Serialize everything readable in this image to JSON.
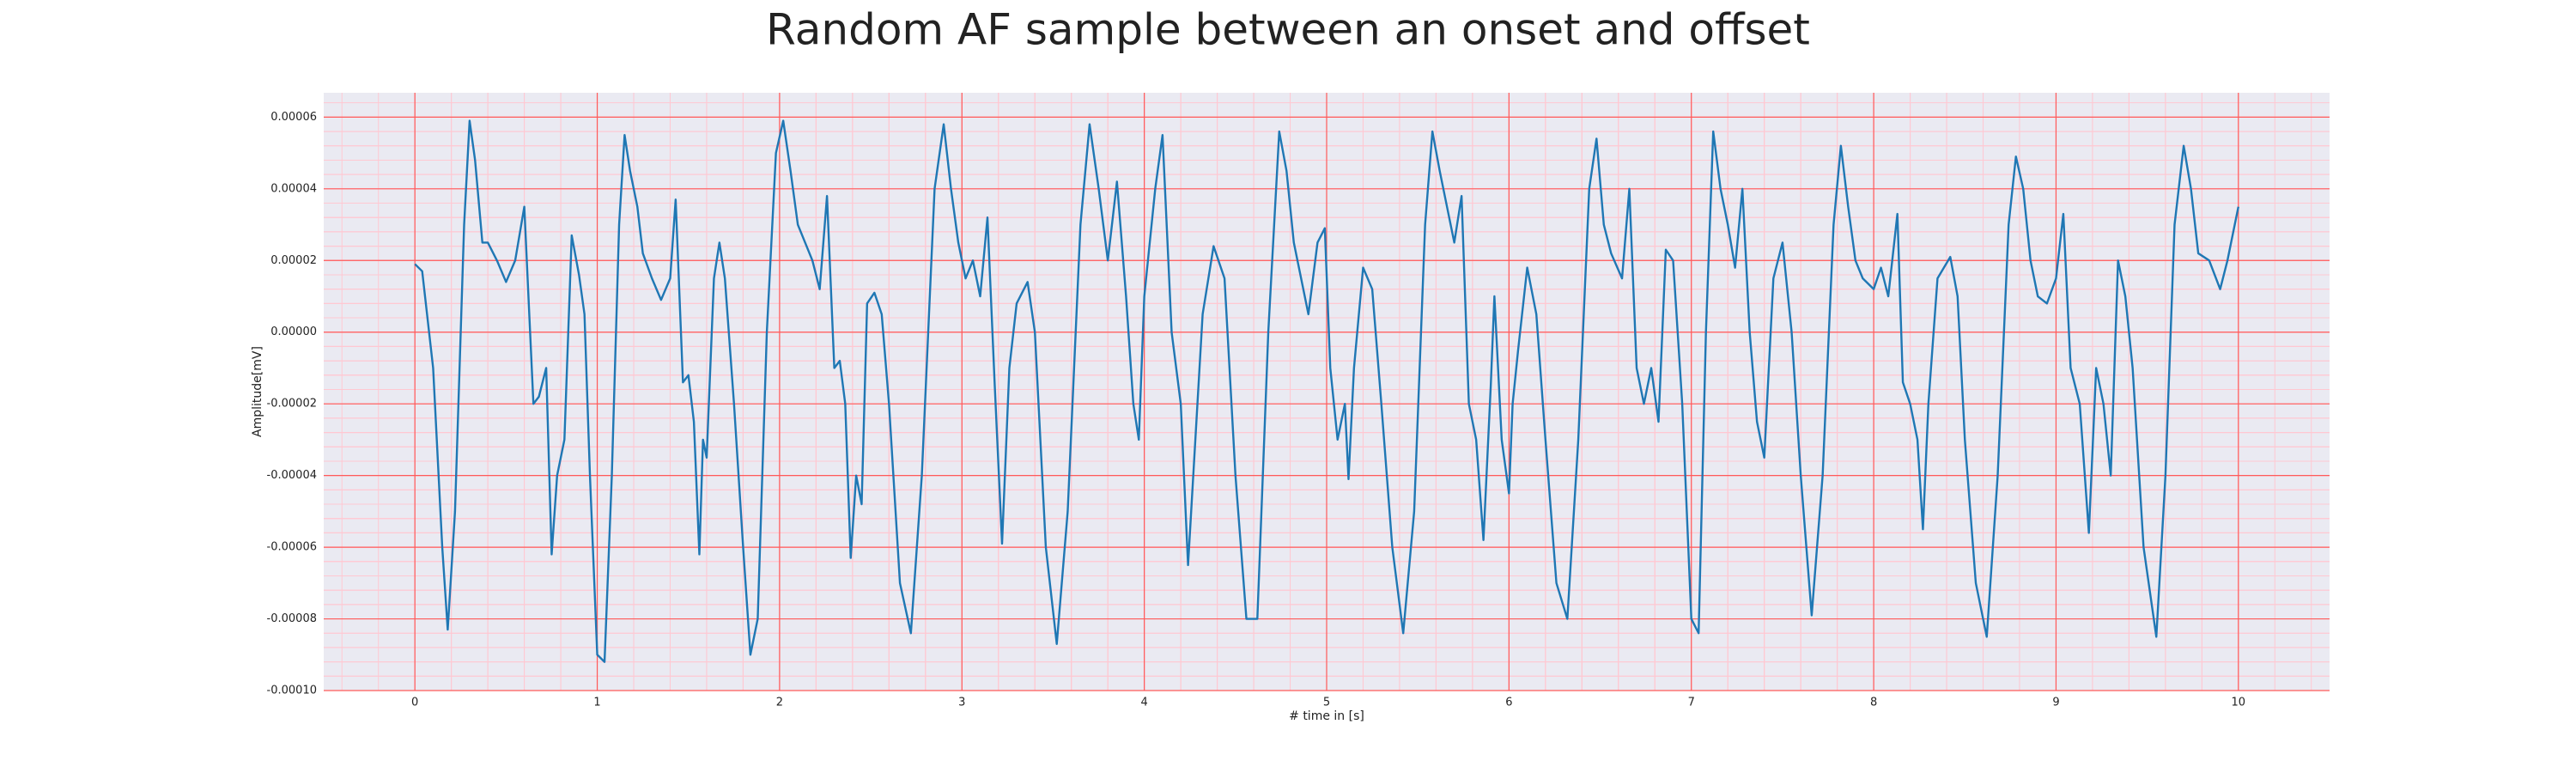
{
  "chart_data": {
    "type": "line",
    "title": "Random AF sample between an onset and offset",
    "xlabel": "# time in [s]",
    "ylabel": "Amplitude[mV]",
    "grid": true,
    "background": "#eaeaf2",
    "grid_color": "#ff5a5a",
    "minor_grid_color": "#ffc8d2",
    "xlim": [
      -0.5,
      10.5
    ],
    "ylim": [
      -0.0001,
      6.68e-05
    ],
    "xticks": [
      0,
      1,
      2,
      3,
      4,
      5,
      6,
      7,
      8,
      9,
      10
    ],
    "yticks": [
      {
        "value": -0.0001,
        "label": "-0.00010"
      },
      -8e-05,
      -6e-05,
      -4e-05,
      -2e-05,
      {
        "value": 0,
        "label": "0.00000"
      },
      2e-05,
      4e-05,
      6e-05
    ],
    "series": [
      {
        "color": "#1f77b4",
        "x": [
          0,
          0.04,
          0.1,
          0.15,
          0.18,
          0.22,
          0.27,
          0.3,
          0.33,
          0.37,
          0.4,
          0.45,
          0.5,
          0.55,
          0.6,
          0.65,
          0.68,
          0.72,
          0.75,
          0.78,
          0.8,
          0.82,
          0.86,
          0.9,
          0.93,
          0.96,
          1.0,
          1.04,
          1.08,
          1.12,
          1.15,
          1.18,
          1.22,
          1.25,
          1.3,
          1.35,
          1.4,
          1.43,
          1.47,
          1.5,
          1.53,
          1.56,
          1.58,
          1.6,
          1.64,
          1.67,
          1.7,
          1.75,
          1.8,
          1.84,
          1.88,
          1.93,
          1.98,
          2.02,
          2.06,
          2.1,
          2.14,
          2.18,
          2.22,
          2.26,
          2.3,
          2.33,
          2.36,
          2.39,
          2.42,
          2.45,
          2.48,
          2.52,
          2.56,
          2.6,
          2.66,
          2.72,
          2.78,
          2.85,
          2.9,
          2.94,
          2.98,
          3.02,
          3.06,
          3.1,
          3.14,
          3.18,
          3.22,
          3.26,
          3.3,
          3.36,
          3.4,
          3.46,
          3.52,
          3.58,
          3.65,
          3.7,
          3.75,
          3.8,
          3.85,
          3.9,
          3.94,
          3.97,
          4.0,
          4.06,
          4.1,
          4.15,
          4.2,
          4.24,
          4.28,
          4.32,
          4.38,
          4.44,
          4.5,
          4.56,
          4.62,
          4.68,
          4.74,
          4.78,
          4.82,
          4.86,
          4.9,
          4.95,
          4.99,
          5.02,
          5.06,
          5.1,
          5.12,
          5.15,
          5.2,
          5.25,
          5.3,
          5.36,
          5.42,
          5.48,
          5.54,
          5.58,
          5.62,
          5.66,
          5.7,
          5.74,
          5.78,
          5.82,
          5.86,
          5.9,
          5.92,
          5.96,
          6.0,
          6.02,
          6.05,
          6.1,
          6.15,
          6.2,
          6.26,
          6.32,
          6.38,
          6.44,
          6.48,
          6.52,
          6.56,
          6.62,
          6.66,
          6.7,
          6.74,
          6.78,
          6.82,
          6.86,
          6.9,
          6.95,
          7.0,
          7.04,
          7.08,
          7.12,
          7.16,
          7.2,
          7.24,
          7.28,
          7.32,
          7.36,
          7.4,
          7.45,
          7.5,
          7.55,
          7.6,
          7.66,
          7.72,
          7.78,
          7.82,
          7.86,
          7.9,
          7.94,
          8.0,
          8.04,
          8.08,
          8.13,
          8.16,
          8.2,
          8.24,
          8.27,
          8.3,
          8.35,
          8.42,
          8.46,
          8.5,
          8.56,
          8.62,
          8.68,
          8.74,
          8.78,
          8.82,
          8.86,
          8.9,
          8.95,
          9.0,
          9.04,
          9.08,
          9.13,
          9.18,
          9.22,
          9.26,
          9.3,
          9.34,
          9.38,
          9.42,
          9.48,
          9.55,
          9.6,
          9.65,
          9.7,
          9.74,
          9.78,
          9.84,
          9.9,
          9.94,
          10.0
        ],
        "values": [
          1.9e-05,
          1.7e-05,
          -1e-05,
          -6e-05,
          -8.3e-05,
          -5e-05,
          3e-05,
          5.9e-05,
          4.8e-05,
          2.5e-05,
          2.5e-05,
          2e-05,
          1.4e-05,
          2e-05,
          3.5e-05,
          -2e-05,
          -1.8e-05,
          -1e-05,
          -6.2e-05,
          -4e-05,
          -3.5e-05,
          -3e-05,
          2.7e-05,
          1.6e-05,
          5e-06,
          -4e-05,
          -9e-05,
          -9.2e-05,
          -4e-05,
          3e-05,
          5.5e-05,
          4.5e-05,
          3.5e-05,
          2.2e-05,
          1.5e-05,
          9e-06,
          1.5e-05,
          3.7e-05,
          -1.4e-05,
          -1.2e-05,
          -2.5e-05,
          -6.2e-05,
          -3e-05,
          -3.5e-05,
          1.5e-05,
          2.5e-05,
          1.5e-05,
          -2e-05,
          -6e-05,
          -9e-05,
          -8e-05,
          0,
          5e-05,
          5.9e-05,
          4.5e-05,
          3e-05,
          2.5e-05,
          2e-05,
          1.2e-05,
          3.8e-05,
          -1e-05,
          -8e-06,
          -2e-05,
          -6.3e-05,
          -4e-05,
          -4.8e-05,
          8e-06,
          1.1e-05,
          5e-06,
          -2e-05,
          -7e-05,
          -8.4e-05,
          -4e-05,
          4e-05,
          5.8e-05,
          4e-05,
          2.5e-05,
          1.5e-05,
          2e-05,
          1e-05,
          3.2e-05,
          -1.5e-05,
          -5.9e-05,
          -1e-05,
          8e-06,
          1.4e-05,
          0,
          -6e-05,
          -8.7e-05,
          -5e-05,
          3e-05,
          5.8e-05,
          4e-05,
          2e-05,
          4.2e-05,
          1e-05,
          -2e-05,
          -3e-05,
          1e-05,
          4e-05,
          5.5e-05,
          0,
          -2e-05,
          -6.5e-05,
          -3e-05,
          5e-06,
          2.4e-05,
          1.5e-05,
          -4e-05,
          -8e-05,
          -8e-05,
          0,
          5.6e-05,
          4.5e-05,
          2.5e-05,
          1.5e-05,
          5e-06,
          2.5e-05,
          2.9e-05,
          -1e-05,
          -3e-05,
          -2e-05,
          -4.1e-05,
          -1e-05,
          1.8e-05,
          1.2e-05,
          -2e-05,
          -6e-05,
          -8.4e-05,
          -5e-05,
          3e-05,
          5.6e-05,
          4.5e-05,
          3.5e-05,
          2.5e-05,
          3.8e-05,
          -2e-05,
          -3e-05,
          -5.8e-05,
          -1.5e-05,
          1e-05,
          -3e-05,
          -4.5e-05,
          -2e-05,
          -5e-06,
          1.8e-05,
          5e-06,
          -3e-05,
          -7e-05,
          -8e-05,
          -3e-05,
          4e-05,
          5.4e-05,
          3e-05,
          2.2e-05,
          1.5e-05,
          4e-05,
          -1e-05,
          -2e-05,
          -1e-05,
          -2.5e-05,
          2.3e-05,
          2e-05,
          -2e-05,
          -8e-05,
          -8.4e-05,
          0,
          5.6e-05,
          4e-05,
          3e-05,
          1.8e-05,
          4e-05,
          0,
          -2.5e-05,
          -3.5e-05,
          1.5e-05,
          2.5e-05,
          0,
          -4e-05,
          -7.9e-05,
          -4e-05,
          3e-05,
          5.2e-05,
          3.5e-05,
          2e-05,
          1.5e-05,
          1.2e-05,
          1.8e-05,
          1e-05,
          3.3e-05,
          -1.4e-05,
          -2e-05,
          -3e-05,
          -5.5e-05,
          -2e-05,
          1.5e-05,
          2.1e-05,
          1e-05,
          -3e-05,
          -7e-05,
          -8.5e-05,
          -4e-05,
          3e-05,
          4.9e-05,
          4e-05,
          2e-05,
          1e-05,
          8e-06,
          1.5e-05,
          3.3e-05,
          -1e-05,
          -2e-05,
          -5.6e-05,
          -1e-05,
          -2e-05,
          -4e-05,
          2e-05,
          1e-05,
          -1e-05,
          -6e-05,
          -8.5e-05,
          -4e-05,
          3e-05,
          5.2e-05,
          4e-05,
          2.2e-05,
          2e-05,
          1.2e-05,
          2e-05,
          3.5e-05
        ]
      }
    ]
  }
}
